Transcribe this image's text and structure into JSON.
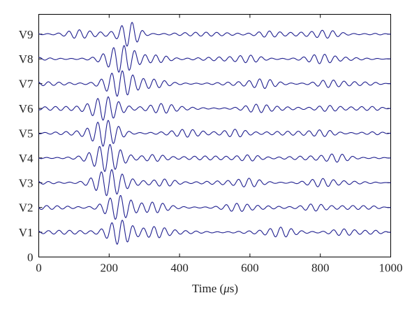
{
  "chart_data": {
    "type": "line",
    "title": "",
    "xlabel_prefix": "Time (",
    "xlabel_unit": "μ",
    "xlabel_suffix": "s)",
    "ylabel": "",
    "xlim": [
      0,
      1000
    ],
    "ylim": [
      0,
      9.8
    ],
    "xticks": [
      0,
      200,
      400,
      600,
      800,
      1000
    ],
    "yticks": [
      {
        "value": 0,
        "label": "0"
      },
      {
        "value": 1,
        "label": "V1"
      },
      {
        "value": 2,
        "label": "V2"
      },
      {
        "value": 3,
        "label": "V3"
      },
      {
        "value": 4,
        "label": "V4"
      },
      {
        "value": 5,
        "label": "V5"
      },
      {
        "value": 6,
        "label": "V6"
      },
      {
        "value": 7,
        "label": "V7"
      },
      {
        "value": 8,
        "label": "V8"
      },
      {
        "value": 9,
        "label": "V9"
      }
    ],
    "grid": false,
    "line_color": "#1f1f8f",
    "series": [
      {
        "name": "V1",
        "offset": 1,
        "amp": 0.48,
        "center_us": 230,
        "width_us": 42,
        "tail": [
          [
            330,
            0.16
          ],
          [
            690,
            0.13
          ],
          [
            860,
            0.1
          ]
        ]
      },
      {
        "name": "V2",
        "offset": 2,
        "amp": 0.45,
        "center_us": 225,
        "width_us": 45,
        "tail": [
          [
            330,
            0.14
          ],
          [
            560,
            0.1
          ],
          [
            780,
            0.12
          ]
        ]
      },
      {
        "name": "V3",
        "offset": 3,
        "amp": 0.47,
        "center_us": 200,
        "width_us": 50,
        "tail": [
          [
            360,
            0.12
          ],
          [
            600,
            0.12
          ],
          [
            800,
            0.1
          ]
        ]
      },
      {
        "name": "V4",
        "offset": 4,
        "amp": 0.48,
        "center_us": 195,
        "width_us": 48,
        "tail": [
          [
            330,
            0.12
          ],
          [
            600,
            0.1
          ],
          [
            850,
            0.12
          ]
        ]
      },
      {
        "name": "V5",
        "offset": 5,
        "amp": 0.48,
        "center_us": 190,
        "width_us": 45,
        "tail": [
          [
            560,
            0.14
          ],
          [
            810,
            0.1
          ],
          [
            420,
            0.08
          ]
        ]
      },
      {
        "name": "V6",
        "offset": 6,
        "amp": 0.46,
        "center_us": 190,
        "width_us": 48,
        "tail": [
          [
            350,
            0.12
          ],
          [
            620,
            0.1
          ],
          [
            820,
            0.1
          ]
        ]
      },
      {
        "name": "V7",
        "offset": 7,
        "amp": 0.47,
        "center_us": 230,
        "width_us": 50,
        "tail": [
          [
            330,
            0.1
          ],
          [
            640,
            0.13
          ],
          [
            820,
            0.1
          ]
        ]
      },
      {
        "name": "V8",
        "offset": 8,
        "amp": 0.47,
        "center_us": 235,
        "width_us": 48,
        "tail": [
          [
            340,
            0.12
          ],
          [
            600,
            0.1
          ],
          [
            800,
            0.12
          ]
        ]
      },
      {
        "name": "V9",
        "offset": 9,
        "amp": 0.46,
        "center_us": 258,
        "width_us": 32,
        "tail": [
          [
            110,
            0.12
          ],
          [
            650,
            0.1
          ],
          [
            820,
            0.1
          ]
        ]
      }
    ],
    "carrier_period_us": 30
  }
}
